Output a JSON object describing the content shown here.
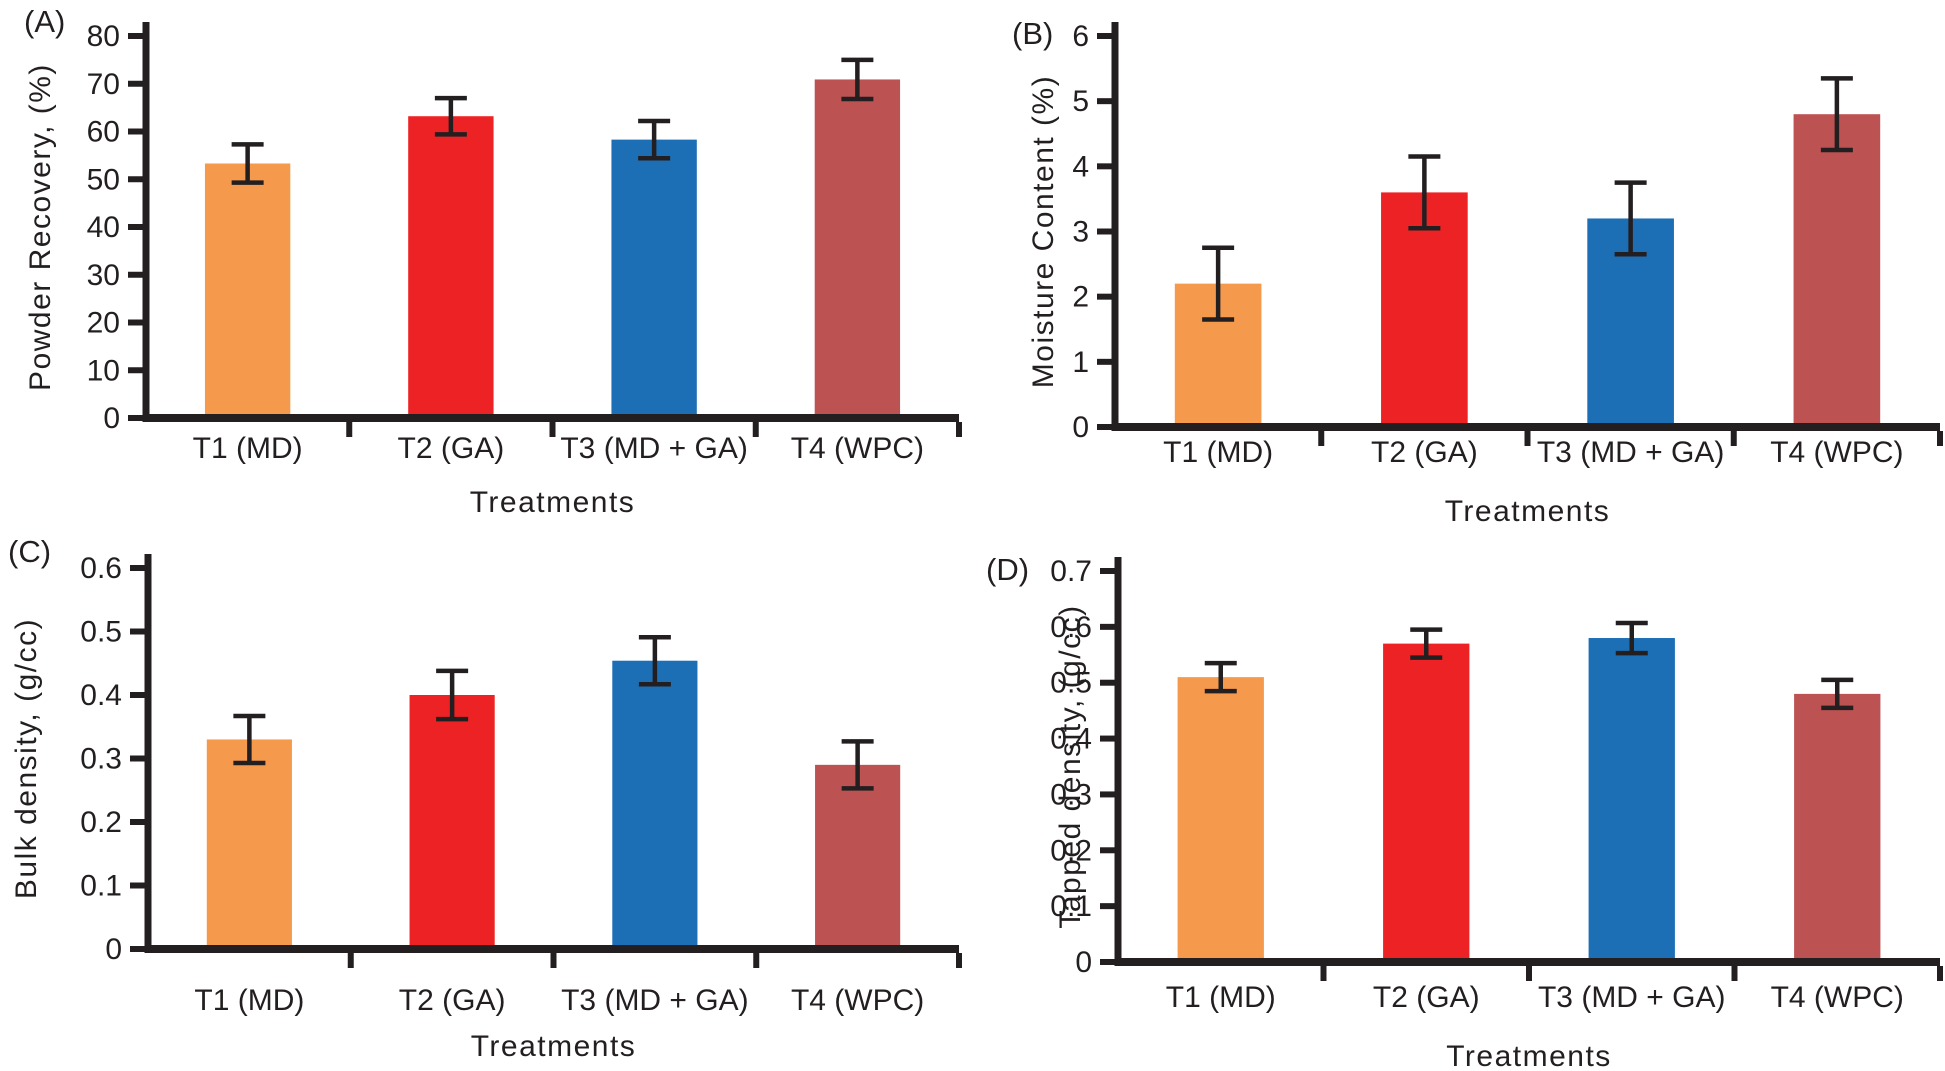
{
  "figure": {
    "background_color": "#ffffff",
    "text_color": "#231F20",
    "axis_color": "#231F20",
    "bar_colors": [
      "#F5994D",
      "#ED2224",
      "#1C6EB5",
      "#BD5253"
    ],
    "bar_color_names": [
      "orange",
      "red",
      "blue",
      "brick-red"
    ]
  },
  "chart_data": [
    {
      "type": "bar",
      "panel_label": "(A)",
      "title": "",
      "ylabel": "Powder Recovery, (%)",
      "xlabel": "Treatments",
      "categories": [
        "T1 (MD)",
        "T2 (GA)",
        "T3 (MD + GA)",
        "T4 (WPC)"
      ],
      "values": [
        53.3,
        63.2,
        58.3,
        70.9
      ],
      "errors": [
        4.0,
        3.8,
        3.9,
        4.1
      ],
      "ylim": [
        0,
        80
      ],
      "ytick_step": 10,
      "ytick_decimals": 0,
      "bar_colors": [
        "#F5994D",
        "#ED2224",
        "#1C6EB5",
        "#BD5253"
      ],
      "error_bars": true,
      "grid": false,
      "legend": "none"
    },
    {
      "type": "bar",
      "panel_label": "(B)",
      "title": "",
      "ylabel": "Moisture Content (%)",
      "xlabel": "Treatments",
      "categories": [
        "T1 (MD)",
        "T2 (GA)",
        "T3 (MD + GA)",
        "T4 (WPC)"
      ],
      "values": [
        2.2,
        3.6,
        3.2,
        4.8
      ],
      "errors": [
        0.55,
        0.55,
        0.55,
        0.55
      ],
      "ylim": [
        0,
        6
      ],
      "ytick_step": 1,
      "ytick_decimals": 0,
      "bar_colors": [
        "#F5994D",
        "#ED2224",
        "#1C6EB5",
        "#BD5253"
      ],
      "error_bars": true,
      "grid": false,
      "legend": "none"
    },
    {
      "type": "bar",
      "panel_label": "(C)",
      "title": "",
      "ylabel": "Bulk density, (g/cc)",
      "xlabel": "Treatments",
      "categories": [
        "T1 (MD)",
        "T2 (GA)",
        "T3 (MD + GA)",
        "T4 (WPC)"
      ],
      "values": [
        0.33,
        0.4,
        0.454,
        0.29
      ],
      "errors": [
        0.037,
        0.038,
        0.037,
        0.037
      ],
      "ylim": [
        0,
        0.6
      ],
      "ytick_step": 0.1,
      "ytick_decimals": 1,
      "bar_colors": [
        "#F5994D",
        "#ED2224",
        "#1C6EB5",
        "#BD5253"
      ],
      "error_bars": true,
      "grid": false,
      "legend": "none"
    },
    {
      "type": "bar",
      "panel_label": "(D)",
      "title": "",
      "ylabel": "Tapped density, (g/cc)",
      "xlabel": "Treatments",
      "categories": [
        "T1 (MD)",
        "T2 (GA)",
        "T3 (MD + GA)",
        "T4 (WPC)"
      ],
      "values": [
        0.51,
        0.57,
        0.58,
        0.48
      ],
      "errors": [
        0.025,
        0.025,
        0.027,
        0.025
      ],
      "ylim": [
        0,
        0.7
      ],
      "ytick_step": 0.1,
      "ytick_decimals": 1,
      "bar_colors": [
        "#F5994D",
        "#ED2224",
        "#1C6EB5",
        "#BD5253"
      ],
      "error_bars": true,
      "grid": false,
      "legend": "none"
    }
  ]
}
